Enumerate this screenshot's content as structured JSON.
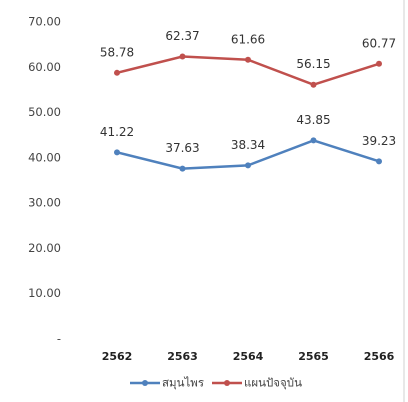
{
  "chart_data": {
    "type": "line",
    "categories": [
      "2562",
      "2563",
      "2564",
      "2565",
      "2566"
    ],
    "series": [
      {
        "name": "สมุนไพร",
        "color": "#4f81bd",
        "values": [
          41.22,
          37.63,
          38.34,
          43.85,
          39.23
        ]
      },
      {
        "name": "แผนปัจจุบัน",
        "color": "#c0504d",
        "values": [
          58.78,
          62.37,
          61.66,
          56.15,
          60.77
        ]
      }
    ],
    "ylim": [
      0,
      70
    ],
    "yticks": [
      {
        "value": 0,
        "label": "-"
      },
      {
        "value": 10,
        "label": "10.00"
      },
      {
        "value": 20,
        "label": "20.00"
      },
      {
        "value": 30,
        "label": "30.00"
      },
      {
        "value": 40,
        "label": "40.00"
      },
      {
        "value": 50,
        "label": "50.00"
      },
      {
        "value": 60,
        "label": "60.00"
      },
      {
        "value": 70,
        "label": "70.00"
      }
    ],
    "legend": "bottom"
  }
}
